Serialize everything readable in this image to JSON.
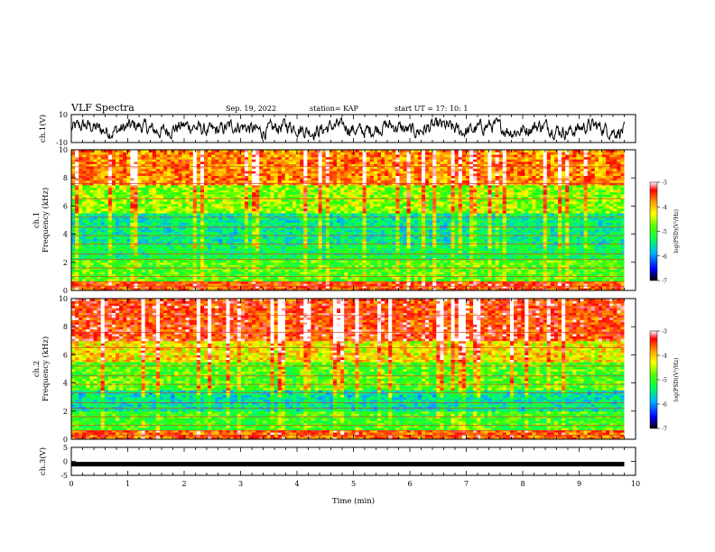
{
  "header": {
    "title": "VLF Spectra",
    "date": "Sep. 19, 2022",
    "station": "station= KAP",
    "start": "start  UT  =   17: 10: 1"
  },
  "chart_data": [
    {
      "type": "line",
      "name": "ch1-waveform",
      "ylabel": "ch.1(V)",
      "ylim": [
        -10,
        10
      ],
      "yticks": [
        "10",
        "-10"
      ],
      "xlim": [
        0,
        10
      ],
      "description_values": "noisy waveform oscillating approximately between -9 and 7 V over 0-9.8 min"
    },
    {
      "type": "heatmap",
      "name": "ch1-spectrogram",
      "ylabel": "ch.1\nFrequency (kHz)",
      "ylim": [
        0,
        10
      ],
      "yticks": [
        "0",
        "2",
        "4",
        "6",
        "8",
        "10"
      ],
      "xlim": [
        0,
        9.8
      ],
      "colorbar": {
        "label": "log(PSD)(V²/Hz)",
        "range": [
          -7,
          -3
        ],
        "ticks": [
          "-3",
          "-4",
          "-5",
          "-6",
          "-7"
        ]
      },
      "bands": [
        {
          "f_low": 0,
          "f_high": 0.7,
          "log_psd": -3.6
        },
        {
          "f_low": 0.7,
          "f_high": 2.2,
          "log_psd": -4.8
        },
        {
          "f_low": 2.2,
          "f_high": 3.3,
          "log_psd": -5.2
        },
        {
          "f_low": 3.3,
          "f_high": 5.5,
          "log_psd": -5.4
        },
        {
          "f_low": 5.5,
          "f_high": 7.5,
          "log_psd": -4.6
        },
        {
          "f_low": 7.5,
          "f_high": 10,
          "log_psd": -3.8
        }
      ]
    },
    {
      "type": "heatmap",
      "name": "ch2-spectrogram",
      "ylabel": "ch.2\nFrequency (kHz)",
      "ylim": [
        0,
        10
      ],
      "yticks": [
        "0",
        "2",
        "4",
        "6",
        "8",
        "10"
      ],
      "xlim": [
        0,
        9.8
      ],
      "colorbar": {
        "label": "log(PSD)(V²/Hz)",
        "range": [
          -7,
          -3
        ],
        "ticks": [
          "-3",
          "-4",
          "-5",
          "-6",
          "-7"
        ]
      },
      "bands": [
        {
          "f_low": 0,
          "f_high": 0.7,
          "log_psd": -3.7
        },
        {
          "f_low": 0.7,
          "f_high": 2.0,
          "log_psd": -4.9
        },
        {
          "f_low": 2.0,
          "f_high": 3.5,
          "log_psd": -5.5
        },
        {
          "f_low": 3.5,
          "f_high": 5.5,
          "log_psd": -4.8
        },
        {
          "f_low": 5.5,
          "f_high": 7.0,
          "log_psd": -4.2
        },
        {
          "f_low": 7.0,
          "f_high": 10,
          "log_psd": -3.5
        }
      ]
    },
    {
      "type": "line",
      "name": "ch3-waveform",
      "ylabel": "ch.3(V)",
      "ylim": [
        -5,
        5
      ],
      "yticks": [
        "5",
        "0",
        "-5"
      ],
      "xlim": [
        0,
        10
      ],
      "level": -1,
      "description_values": "flat thick trace near -1 V from 0 to 9.8 min"
    }
  ],
  "xaxis": {
    "label": "Time  (min)",
    "ticks": [
      "0",
      "1",
      "2",
      "3",
      "4",
      "5",
      "6",
      "7",
      "8",
      "9",
      "10"
    ],
    "range": [
      0,
      10
    ]
  },
  "colors": {
    "colormap": [
      "#000000",
      "#0000ff",
      "#00aaff",
      "#00ff66",
      "#33ff00",
      "#ffff00",
      "#ff8800",
      "#ff0000",
      "#ffffff"
    ]
  }
}
